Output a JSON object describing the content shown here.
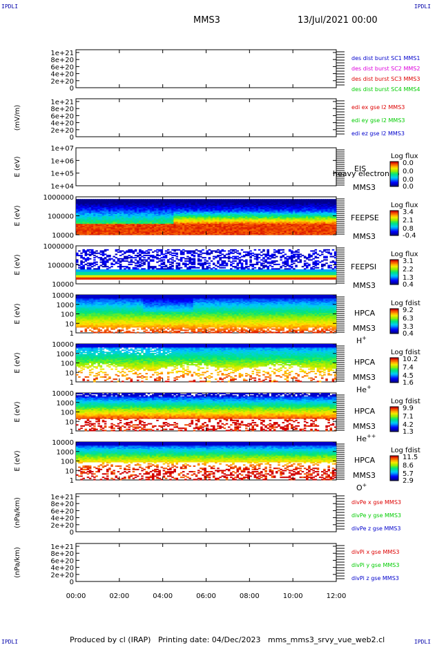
{
  "corner_label": "IPDLI",
  "header": {
    "mission": "MMS3",
    "date": "13/Jul/2021 00:00"
  },
  "footer": {
    "producer": "Produced by cl (IRAP)",
    "printing": "Printing date: 04/Dec/2023",
    "script": "mms_mms3_srvy_vue_web2.cl"
  },
  "colors": {
    "mms1": "#0000cc",
    "mms2": "#dd00dd",
    "mms3": "#dd0000",
    "mms4": "#00cc00",
    "x": "#dd0000",
    "y": "#00cc00",
    "z": "#0000cc"
  },
  "chart_data": {
    "type": "heatmap",
    "xlabel": "",
    "x_ticks": [
      "00:00",
      "02:00",
      "04:00",
      "06:00",
      "08:00",
      "10:00",
      "12:00"
    ],
    "x_range_hours": [
      0,
      12
    ],
    "panels": [
      {
        "name": "des-dist",
        "type": "line",
        "ylabel": "",
        "yticks": [
          "1e+21",
          "8e+20",
          "6e+20",
          "4e+20",
          "2e+20",
          "0"
        ],
        "zero_line": true,
        "legend": [
          {
            "text": "des dist burst SC1 MMS1",
            "color": "#0000cc"
          },
          {
            "text": "des dist burst SC2 MMS2",
            "color": "#dd00dd"
          },
          {
            "text": "des dist burst SC3 MMS3",
            "color": "#dd0000"
          },
          {
            "text": "des dist burst SC4 MMS4",
            "color": "#00cc00"
          }
        ]
      },
      {
        "name": "edi-e",
        "type": "line",
        "ylabel": "(mV/m)",
        "yticks": [
          "1e+21",
          "8e+20",
          "6e+20",
          "4e+20",
          "2e+20",
          "0"
        ],
        "zero_line": true,
        "legend": [
          {
            "text": "edi ex gse l2 MMS3",
            "color": "#dd0000"
          },
          {
            "text": "edi ey gse l2 MMS3",
            "color": "#00cc00"
          },
          {
            "text": "edi ez gse l2 MMS3",
            "color": "#0000cc"
          }
        ]
      },
      {
        "name": "eis",
        "type": "heatmap",
        "ylabel": "E (eV)",
        "yticks": [
          "1e+07",
          "1e+06",
          "1e+05",
          "1e+04"
        ],
        "instrument": "EIS",
        "spacecraft": "MMS3",
        "overlay": "heavy electron to",
        "cb_title": "Log flux",
        "cb_ticks": [
          "0.0",
          "0.0",
          "0.0",
          "0.0"
        ],
        "fill": "none"
      },
      {
        "name": "feeps-e",
        "type": "heatmap",
        "ylabel": "E (eV)",
        "yticks": [
          "1000000",
          "100000",
          "10000"
        ],
        "instrument": "FEEPSE",
        "spacecraft": "MMS3",
        "cb_title": "Log flux",
        "cb_ticks": [
          "3.4",
          "2.1",
          "0.8",
          "-0.4"
        ],
        "fill": "feepse"
      },
      {
        "name": "feeps-i",
        "type": "heatmap",
        "ylabel": "E (eV)",
        "yticks": [
          "1000000",
          "100000",
          "10000"
        ],
        "instrument": "FEEPSI",
        "spacecraft": "MMS3",
        "cb_title": "Log flux",
        "cb_ticks": [
          "3.1",
          "2.2",
          "1.3",
          "0.4"
        ],
        "fill": "feepsi"
      },
      {
        "name": "hpca-h",
        "type": "heatmap",
        "ylabel": "E (eV)",
        "yticks": [
          "10000",
          "1000",
          "100",
          "10",
          "1"
        ],
        "instrument": "HPCA",
        "spacecraft": "MMS3",
        "species": "H",
        "charge": "+",
        "cb_title": "Log fdist",
        "cb_ticks": [
          "9.2",
          "6.3",
          "3.3",
          "0.4"
        ],
        "fill": "hpca-h"
      },
      {
        "name": "hpca-he1",
        "type": "heatmap",
        "ylabel": "E (eV)",
        "yticks": [
          "10000",
          "1000",
          "100",
          "10",
          "1"
        ],
        "instrument": "HPCA",
        "spacecraft": "MMS3",
        "species": "He",
        "charge": "+",
        "cb_title": "Log fdist",
        "cb_ticks": [
          "10.2",
          "7.4",
          "4.5",
          "1.6"
        ],
        "fill": "hpca-he1"
      },
      {
        "name": "hpca-he2",
        "type": "heatmap",
        "ylabel": "E (eV)",
        "yticks": [
          "10000",
          "1000",
          "100",
          "10",
          "1"
        ],
        "instrument": "HPCA",
        "spacecraft": "MMS3",
        "species": "He",
        "charge": "++",
        "cb_title": "Log fdist",
        "cb_ticks": [
          "9.9",
          "7.1",
          "4.2",
          "1.3"
        ],
        "fill": "hpca-he2"
      },
      {
        "name": "hpca-o",
        "type": "heatmap",
        "ylabel": "E (eV)",
        "yticks": [
          "10000",
          "1000",
          "100",
          "10",
          "1"
        ],
        "instrument": "HPCA",
        "spacecraft": "MMS3",
        "species": "O",
        "charge": "+",
        "cb_title": "Log fdist",
        "cb_ticks": [
          "11.5",
          "8.6",
          "5.7",
          "2.9"
        ],
        "fill": "hpca-o"
      },
      {
        "name": "divpe",
        "type": "line",
        "ylabel": "(nPa/km)",
        "yticks": [
          "1e+21",
          "8e+20",
          "6e+20",
          "4e+20",
          "2e+20",
          "0"
        ],
        "zero_line": true,
        "legend": [
          {
            "text": "divPe x gse MMS3",
            "color": "#dd0000"
          },
          {
            "text": "divPe y gse MMS3",
            "color": "#00cc00"
          },
          {
            "text": "divPe z gse MMS3",
            "color": "#0000cc"
          }
        ]
      },
      {
        "name": "divpi",
        "type": "line",
        "ylabel": "(nPa/km)",
        "yticks": [
          "1e+21",
          "8e+20",
          "6e+20",
          "4e+20",
          "2e+20",
          "0"
        ],
        "zero_line": true,
        "legend": [
          {
            "text": "divPi x gse MMS3",
            "color": "#dd0000"
          },
          {
            "text": "divPi y gse MMS3",
            "color": "#00cc00"
          },
          {
            "text": "divPi z gse MMS3",
            "color": "#0000cc"
          }
        ]
      }
    ]
  }
}
